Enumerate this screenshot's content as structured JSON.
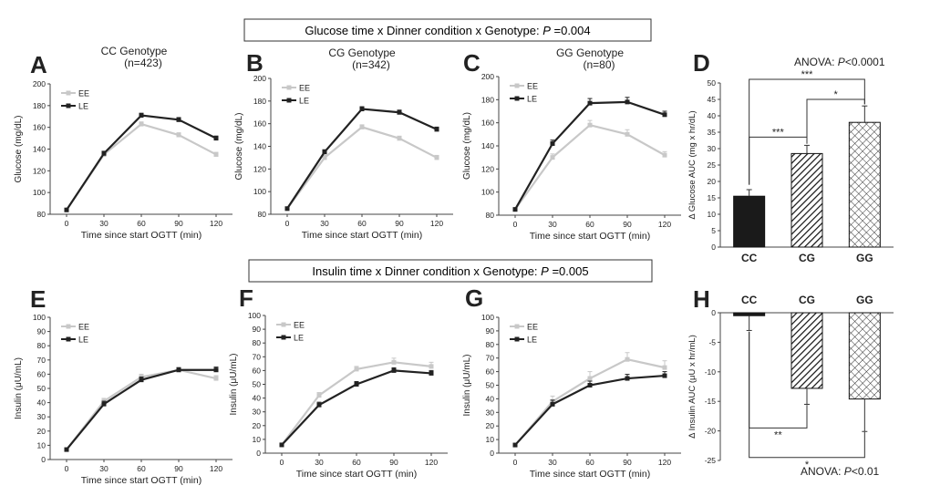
{
  "banners": {
    "glucose": {
      "prefix": "Glucose time x Dinner condition x Genotype: ",
      "p_italic": "P",
      "p_value": " =0.004"
    },
    "insulin": {
      "prefix": "Insulin time x Dinner condition x Genotype: ",
      "p_italic": "P",
      "p_value": " =0.005"
    }
  },
  "chart_data": [
    {
      "id": "A",
      "panel_letter": "A",
      "type": "line",
      "title": "CC Genotype",
      "subtitle": "(n=423)",
      "xlabel": "Time since start OGTT (min)",
      "ylabel": "Glucose (mg/dL)",
      "x": [
        0,
        30,
        60,
        90,
        120
      ],
      "ylim": [
        80,
        200
      ],
      "yticks": [
        80,
        100,
        120,
        140,
        160,
        180,
        200
      ],
      "legend": "top-left",
      "series": [
        {
          "name": "EE",
          "color": "#c8c8c8",
          "values": [
            84,
            135,
            163,
            153,
            135
          ],
          "err": [
            1,
            2,
            2,
            2,
            2
          ]
        },
        {
          "name": "LE",
          "color": "#222222",
          "values": [
            84,
            136,
            171,
            167,
            150
          ],
          "err": [
            1,
            2,
            2,
            2,
            2
          ]
        }
      ]
    },
    {
      "id": "B",
      "panel_letter": "B",
      "type": "line",
      "title": "CG Genotype",
      "subtitle": "(n=342)",
      "xlabel": "Time since start OGTT (min)",
      "ylabel": "Glucose (mg/dL)",
      "x": [
        0,
        30,
        60,
        90,
        120
      ],
      "ylim": [
        80,
        200
      ],
      "yticks": [
        80,
        100,
        120,
        140,
        160,
        180,
        200
      ],
      "legend": "top-left",
      "series": [
        {
          "name": "EE",
          "color": "#c8c8c8",
          "values": [
            85,
            130,
            157,
            147,
            130
          ],
          "err": [
            1,
            2,
            2,
            2,
            2
          ]
        },
        {
          "name": "LE",
          "color": "#222222",
          "values": [
            85,
            135,
            173,
            170,
            155
          ],
          "err": [
            1,
            2,
            2,
            2,
            2
          ]
        }
      ]
    },
    {
      "id": "C",
      "panel_letter": "C",
      "type": "line",
      "title": "GG Genotype",
      "subtitle": "(n=80)",
      "xlabel": "Time since start OGTT (min)",
      "ylabel": "Glucose (mg/dL)",
      "x": [
        0,
        30,
        60,
        90,
        120
      ],
      "ylim": [
        80,
        200
      ],
      "yticks": [
        80,
        100,
        120,
        140,
        160,
        180,
        200
      ],
      "legend": "top-left",
      "series": [
        {
          "name": "EE",
          "color": "#c8c8c8",
          "values": [
            85,
            130,
            158,
            150,
            132
          ],
          "err": [
            1,
            3,
            4,
            4,
            3
          ]
        },
        {
          "name": "LE",
          "color": "#222222",
          "values": [
            85,
            142,
            177,
            178,
            167
          ],
          "err": [
            1,
            3,
            4,
            4,
            3
          ]
        }
      ]
    },
    {
      "id": "D",
      "panel_letter": "D",
      "type": "bar",
      "title": "ANOVA: P<0.0001",
      "title_italic": "P",
      "title_pre": "ANOVA: ",
      "title_post": "<0.0001",
      "categories": [
        "CC",
        "CG",
        "GG"
      ],
      "values": [
        15.5,
        28.5,
        38
      ],
      "err": [
        2,
        2.5,
        5
      ],
      "ylabel": "Δ Glucose AUC (mg x hr/dL)",
      "ylim": [
        0,
        50
      ],
      "yticks": [
        0,
        5,
        10,
        15,
        20,
        25,
        30,
        35,
        40,
        45,
        50
      ],
      "patterns": [
        "solid",
        "hatch",
        "cross"
      ],
      "significance": [
        {
          "from": 0,
          "to": 2,
          "label": "***"
        },
        {
          "from": 1,
          "to": 2,
          "label": "*"
        },
        {
          "from": 0,
          "to": 1,
          "label": "***"
        }
      ]
    },
    {
      "id": "E",
      "panel_letter": "E",
      "type": "line",
      "title": "",
      "subtitle": "",
      "xlabel": "Time since start OGTT (min)",
      "ylabel": "Insulin (μU/mL)",
      "x": [
        0,
        30,
        60,
        90,
        120
      ],
      "ylim": [
        0,
        100
      ],
      "yticks": [
        0,
        10,
        20,
        30,
        40,
        50,
        60,
        70,
        80,
        90,
        100
      ],
      "legend": "top-left",
      "series": [
        {
          "name": "EE",
          "color": "#c8c8c8",
          "values": [
            7,
            41,
            58,
            63,
            57
          ],
          "err": [
            0.5,
            2,
            2,
            2,
            2
          ]
        },
        {
          "name": "LE",
          "color": "#222222",
          "values": [
            7,
            39,
            56,
            63,
            63
          ],
          "err": [
            0.5,
            2,
            2,
            1.5,
            2
          ]
        }
      ]
    },
    {
      "id": "F",
      "panel_letter": "F",
      "type": "line",
      "title": "",
      "subtitle": "",
      "xlabel": "Time since start OGTT (min)",
      "ylabel": "Insulin (μU/mL)",
      "x": [
        0,
        30,
        60,
        90,
        120
      ],
      "ylim": [
        0,
        100
      ],
      "yticks": [
        0,
        10,
        20,
        30,
        40,
        50,
        60,
        70,
        80,
        90,
        100
      ],
      "legend": "top-left",
      "series": [
        {
          "name": "EE",
          "color": "#c8c8c8",
          "values": [
            6,
            42,
            61,
            66,
            63
          ],
          "err": [
            0.5,
            2,
            2,
            3,
            3
          ]
        },
        {
          "name": "LE",
          "color": "#222222",
          "values": [
            6,
            35,
            50,
            60,
            58
          ],
          "err": [
            0.5,
            2,
            2,
            2,
            2
          ]
        }
      ]
    },
    {
      "id": "G",
      "panel_letter": "G",
      "type": "line",
      "title": "",
      "subtitle": "",
      "xlabel": "Time since start OGTT (min)",
      "ylabel": "Insulin (μU/mL)",
      "x": [
        0,
        30,
        60,
        90,
        120
      ],
      "ylim": [
        0,
        100
      ],
      "yticks": [
        0,
        10,
        20,
        30,
        40,
        50,
        60,
        70,
        80,
        90,
        100
      ],
      "legend": "top-left",
      "series": [
        {
          "name": "EE",
          "color": "#c8c8c8",
          "values": [
            6,
            38,
            55,
            69,
            63
          ],
          "err": [
            0.5,
            4,
            5,
            5,
            5
          ]
        },
        {
          "name": "LE",
          "color": "#222222",
          "values": [
            6,
            36,
            50,
            55,
            57
          ],
          "err": [
            0.5,
            3,
            3,
            3,
            3
          ]
        }
      ]
    },
    {
      "id": "H",
      "panel_letter": "H",
      "type": "bar",
      "title": "ANOVA: P<0.01",
      "title_italic": "P",
      "title_pre": "ANOVA: ",
      "title_post": "<0.01",
      "categories": [
        "CC",
        "CG",
        "GG"
      ],
      "values": [
        -0.5,
        -12.8,
        -14.6
      ],
      "err": [
        2.5,
        2.7,
        5.5
      ],
      "ylabel": "Δ Insulin AUC (μU x hr/mL)",
      "ylim": [
        -25,
        0
      ],
      "yticks": [
        0,
        -5,
        -10,
        -15,
        -20,
        -25
      ],
      "patterns": [
        "solid",
        "hatch",
        "cross"
      ],
      "significance": [
        {
          "from": 0,
          "to": 1,
          "label": "**"
        },
        {
          "from": 0,
          "to": 2,
          "label": "*"
        }
      ]
    }
  ]
}
